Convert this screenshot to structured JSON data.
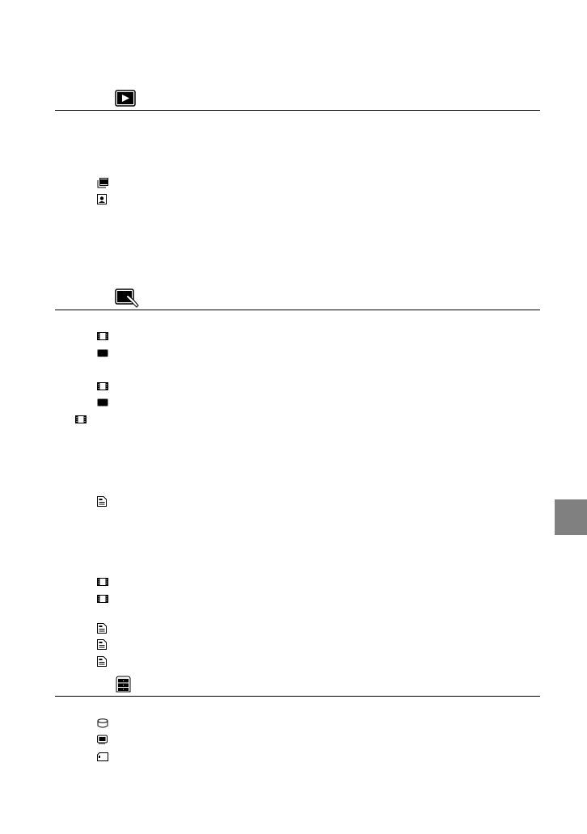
{
  "sections": [
    {
      "header_icon": "playback-icon",
      "items": [
        "film-stack-icon",
        "portrait-photo-icon"
      ]
    },
    {
      "header_icon": "touch-screen-icon",
      "items": [
        "film-icon",
        "screen-icon",
        "film-icon",
        "screen-icon",
        "film-icon",
        "document-icon",
        "film-icon",
        "film-icon",
        "document-icon",
        "document-icon",
        "document-icon"
      ]
    },
    {
      "header_icon": "storage-icon",
      "items": [
        "hdd-icon",
        "memory-icon",
        "memory-card-icon"
      ]
    }
  ],
  "side_tab": {
    "color": "#808080"
  }
}
